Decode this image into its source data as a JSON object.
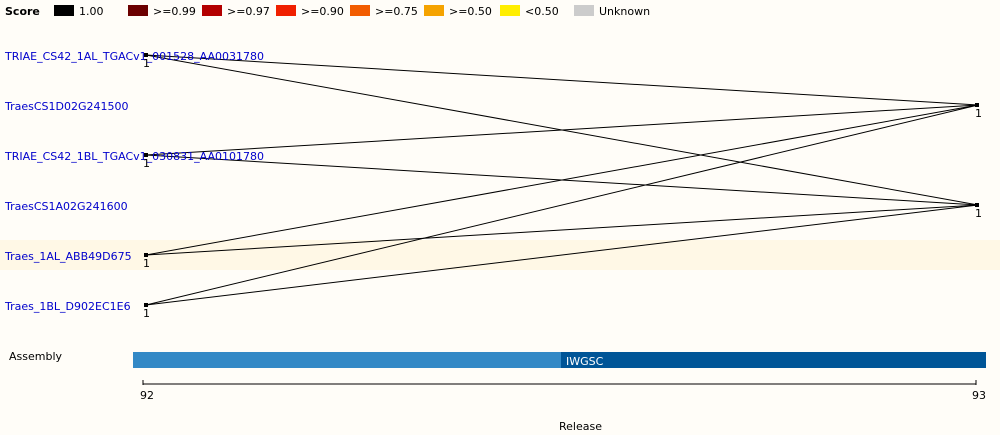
{
  "legend": {
    "title": "Score",
    "items": [
      {
        "label": "1.00",
        "color": "#000000"
      },
      {
        "label": ">=0.99",
        "color": "#6b0000"
      },
      {
        "label": ">=0.97",
        "color": "#b30000"
      },
      {
        "label": ">=0.90",
        "color": "#f02000"
      },
      {
        "label": ">=0.75",
        "color": "#f25c00"
      },
      {
        "label": ">=0.50",
        "color": "#f5a300"
      },
      {
        "label": "<0.50",
        "color": "#ffee00"
      },
      {
        "label": "Unknown",
        "color": "#cccccc"
      }
    ]
  },
  "genes": [
    {
      "label": "TRIAE_CS42_1AL_TGACv1_001528_AA0031780",
      "score": "1"
    },
    {
      "label": "TraesCS1D02G241500",
      "score": ""
    },
    {
      "label": "TRIAE_CS42_1BL_TGACv1_030831_AA0101780",
      "score": "1"
    },
    {
      "label": "TraesCS1A02G241600",
      "score": ""
    },
    {
      "label": "Traes_1AL_ABB49D675",
      "score": "1"
    },
    {
      "label": "Traes_1BL_D902EC1E6",
      "score": "1"
    }
  ],
  "right_scores": {
    "top": "1",
    "bottom": "1"
  },
  "assembly": {
    "label": "Assembly",
    "segment_label": "IWGSC",
    "colors": {
      "left": "#3389c6",
      "right": "#005597"
    }
  },
  "release": {
    "label": "Release",
    "start": "92",
    "end": "93"
  }
}
